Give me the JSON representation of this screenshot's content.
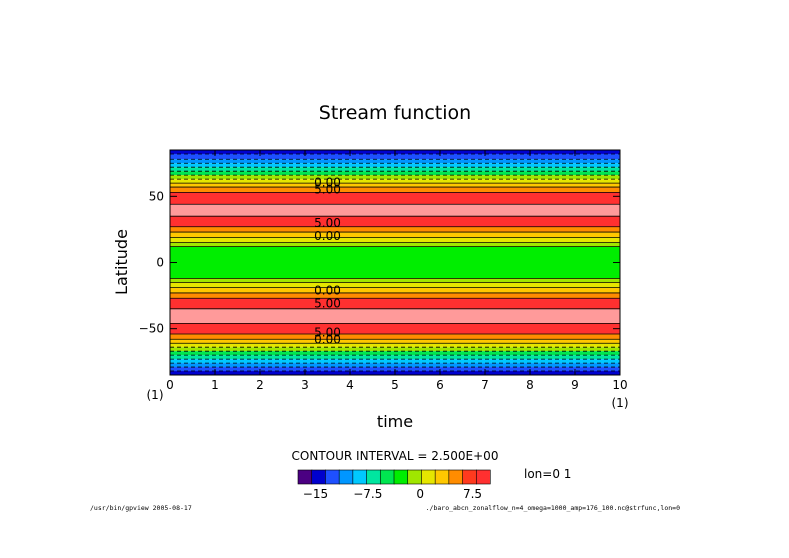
{
  "chart_data": {
    "type": "heatmap",
    "title": "Stream function",
    "xlabel": "time",
    "ylabel": "Latitude",
    "xlim": [
      0,
      10
    ],
    "ylim": [
      -85,
      85
    ],
    "x_ticks": [
      "0",
      "1",
      "2",
      "3",
      "4",
      "5",
      "6",
      "7",
      "8",
      "9",
      "10"
    ],
    "y_ticks": [
      "-50",
      "0",
      "50"
    ],
    "x_start_note": "(1)",
    "x_end_note": "(1)",
    "contour_interval_label": "CONTOUR INTERVAL = 2.500E+00",
    "colorbar": {
      "colors": [
        "#4b0082",
        "#0000cd",
        "#1e50ff",
        "#0096ff",
        "#00c8ff",
        "#00e6a0",
        "#00e650",
        "#00ee00",
        "#a0e600",
        "#e6e600",
        "#ffc800",
        "#ff8c00",
        "#ff3a1e",
        "#ff3030"
      ],
      "tick_labels": [
        "-15",
        "-7.5",
        "0",
        "7.5"
      ],
      "tick_values": [
        -15,
        -7.5,
        0,
        7.5
      ],
      "vmin": -17.5,
      "vmax": 10
    },
    "lon_label": "lon=0 1",
    "bands": [
      {
        "lat": [
          82,
          85
        ],
        "color": "#0000cd"
      },
      {
        "lat": [
          78,
          82
        ],
        "color": "#1e50ff"
      },
      {
        "lat": [
          75,
          78
        ],
        "color": "#0096ff"
      },
      {
        "lat": [
          72,
          75
        ],
        "color": "#00c8ff"
      },
      {
        "lat": [
          69,
          72
        ],
        "color": "#00e6a0"
      },
      {
        "lat": [
          66,
          69
        ],
        "color": "#00e650"
      },
      {
        "lat": [
          63,
          66
        ],
        "color": "#a0e600"
      },
      {
        "lat": [
          60,
          63
        ],
        "color": "#e6e600"
      },
      {
        "lat": [
          57,
          60
        ],
        "color": "#ffc800"
      },
      {
        "lat": [
          53,
          57
        ],
        "color": "#ff8c00"
      },
      {
        "lat": [
          44,
          53
        ],
        "color": "#ff3030"
      },
      {
        "lat": [
          35,
          44
        ],
        "color": "#ff9a9a"
      },
      {
        "lat": [
          27,
          35
        ],
        "color": "#ff3030"
      },
      {
        "lat": [
          23,
          27
        ],
        "color": "#ff8c00"
      },
      {
        "lat": [
          19,
          23
        ],
        "color": "#ffc800"
      },
      {
        "lat": [
          15,
          19
        ],
        "color": "#e6e600"
      },
      {
        "lat": [
          12,
          15
        ],
        "color": "#a0e600"
      },
      {
        "lat": [
          -12,
          12
        ],
        "color": "#00ee00"
      },
      {
        "lat": [
          -15,
          -12
        ],
        "color": "#a0e600"
      },
      {
        "lat": [
          -19,
          -15
        ],
        "color": "#e6e600"
      },
      {
        "lat": [
          -23,
          -19
        ],
        "color": "#ffc800"
      },
      {
        "lat": [
          -27,
          -23
        ],
        "color": "#ff8c00"
      },
      {
        "lat": [
          -35,
          -27
        ],
        "color": "#ff3030"
      },
      {
        "lat": [
          -46,
          -35
        ],
        "color": "#ff9a9a"
      },
      {
        "lat": [
          -54,
          -46
        ],
        "color": "#ff3030"
      },
      {
        "lat": [
          -58,
          -54
        ],
        "color": "#ff8c00"
      },
      {
        "lat": [
          -61,
          -58
        ],
        "color": "#ffc800"
      },
      {
        "lat": [
          -64,
          -61
        ],
        "color": "#e6e600"
      },
      {
        "lat": [
          -67,
          -64
        ],
        "color": "#a0e600"
      },
      {
        "lat": [
          -70,
          -67
        ],
        "color": "#00e650"
      },
      {
        "lat": [
          -73,
          -70
        ],
        "color": "#00e6a0"
      },
      {
        "lat": [
          -76,
          -73
        ],
        "color": "#00c8ff"
      },
      {
        "lat": [
          -79,
          -76
        ],
        "color": "#0096ff"
      },
      {
        "lat": [
          -82,
          -79
        ],
        "color": "#1e50ff"
      },
      {
        "lat": [
          -85,
          -82
        ],
        "color": "#0000cd"
      }
    ],
    "contour_labels": [
      {
        "text": "0.00",
        "lat": 60.5
      },
      {
        "text": "5.00",
        "lat": 55
      },
      {
        "text": "5.00",
        "lat": 30
      },
      {
        "text": "0.00",
        "lat": 20
      },
      {
        "text": "0.00",
        "lat": -21
      },
      {
        "text": "5.00",
        "lat": -31
      },
      {
        "text": "5.00",
        "lat": -53
      },
      {
        "text": "0.00",
        "lat": -58
      }
    ],
    "contour_label_time": 3.5
  },
  "footer": {
    "left": "/usr/bin/gpview  2005-08-17",
    "right": "./baro_abcn_zonalflow_n=4_omega=1000_amp=176_100.nc@strfunc,lon=0"
  }
}
